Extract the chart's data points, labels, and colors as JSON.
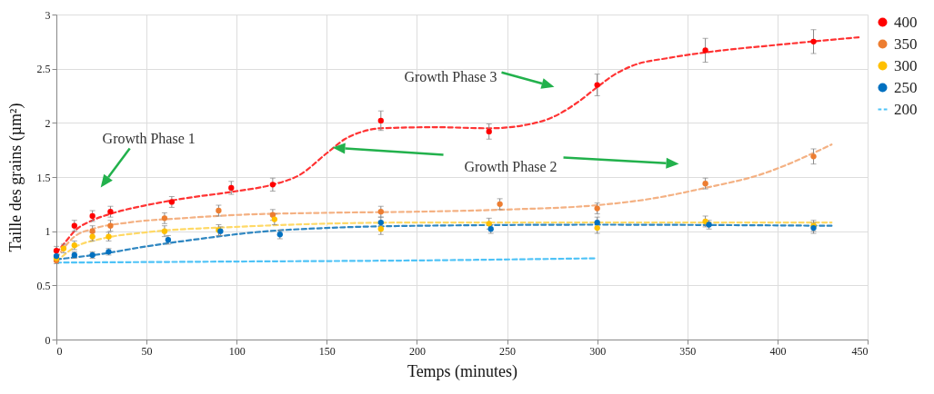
{
  "chart_data": {
    "type": "scatter",
    "xlabel": "Temps (minutes)",
    "ylabel": "Taille des grains (µm²)",
    "xlim": [
      0,
      450
    ],
    "xticks": [
      0,
      50,
      100,
      150,
      200,
      250,
      300,
      350,
      400,
      450
    ],
    "ylim": [
      0,
      3
    ],
    "yticks": [
      0,
      0.5,
      1,
      1.5,
      2,
      2.5,
      3
    ],
    "grid": true,
    "legend": "right",
    "annotations": [
      "Growth Phase 1",
      "Growth Phase 2",
      "Growth Phase 3"
    ],
    "series": [
      {
        "type": "line",
        "color": "#ff3333",
        "line_style": "dashed",
        "x": [
          0,
          5,
          10,
          20,
          30,
          50,
          70,
          100,
          120,
          135,
          150,
          160,
          170,
          180,
          210,
          240,
          260,
          275,
          290,
          300,
          310,
          320,
          340,
          360,
          400,
          445
        ],
        "values": [
          0.8,
          0.9,
          1.0,
          1.1,
          1.16,
          1.24,
          1.3,
          1.37,
          1.43,
          1.52,
          1.72,
          1.85,
          1.92,
          1.95,
          1.96,
          1.95,
          1.98,
          2.05,
          2.2,
          2.33,
          2.45,
          2.53,
          2.6,
          2.65,
          2.72,
          2.79
        ]
      },
      {
        "type": "line",
        "color": "#f4b183",
        "line_style": "dashed",
        "x": [
          0,
          10,
          20,
          40,
          70,
          100,
          150,
          200,
          250,
          300,
          330,
          360,
          390,
          430
        ],
        "values": [
          0.75,
          0.95,
          1.02,
          1.08,
          1.12,
          1.15,
          1.17,
          1.18,
          1.2,
          1.24,
          1.3,
          1.4,
          1.52,
          1.8
        ]
      },
      {
        "type": "line",
        "color": "#ffd966",
        "line_style": "dashed",
        "x": [
          0,
          10,
          25,
          50,
          100,
          150,
          200,
          300,
          430
        ],
        "values": [
          0.72,
          0.85,
          0.93,
          0.99,
          1.04,
          1.07,
          1.08,
          1.08,
          1.08
        ]
      },
      {
        "type": "line",
        "color": "#2e86c1",
        "line_style": "dashed",
        "x": [
          0,
          25,
          50,
          80,
          110,
          150,
          200,
          300,
          430
        ],
        "values": [
          0.74,
          0.79,
          0.86,
          0.93,
          0.99,
          1.03,
          1.05,
          1.06,
          1.05
        ]
      },
      {
        "name": "400",
        "marker": "circle",
        "color": "#ff0000",
        "x": [
          0,
          10,
          20,
          30,
          64,
          97,
          120,
          180,
          240,
          300,
          360,
          420
        ],
        "values": [
          0.82,
          1.05,
          1.14,
          1.18,
          1.27,
          1.4,
          1.43,
          2.02,
          1.92,
          2.35,
          2.67,
          2.75
        ],
        "errors": [
          0.04,
          0.05,
          0.05,
          0.05,
          0.05,
          0.06,
          0.06,
          0.09,
          0.07,
          0.1,
          0.11,
          0.11
        ]
      },
      {
        "name": "350",
        "marker": "circle",
        "color": "#ed7d31",
        "x": [
          0,
          20,
          30,
          60,
          90,
          120,
          180,
          246,
          300,
          360,
          420
        ],
        "values": [
          0.73,
          1.0,
          1.05,
          1.12,
          1.19,
          1.15,
          1.18,
          1.25,
          1.21,
          1.44,
          1.69
        ],
        "errors": [
          0.03,
          0.05,
          0.05,
          0.05,
          0.05,
          0.05,
          0.05,
          0.05,
          0.05,
          0.05,
          0.07
        ]
      },
      {
        "name": "300",
        "marker": "circle",
        "color": "#ffc000",
        "x": [
          0,
          4,
          10,
          20,
          29,
          60,
          90,
          121,
          180,
          240,
          300,
          360,
          420
        ],
        "values": [
          0.75,
          0.84,
          0.87,
          0.95,
          0.95,
          1.0,
          1.01,
          1.11,
          1.02,
          1.07,
          1.03,
          1.09,
          1.05
        ],
        "errors": [
          0.03,
          0.04,
          0.04,
          0.04,
          0.04,
          0.05,
          0.05,
          0.05,
          0.05,
          0.05,
          0.05,
          0.05,
          0.05
        ]
      },
      {
        "name": "250",
        "marker": "circle",
        "color": "#0070c0",
        "x": [
          0,
          10,
          20,
          29,
          62,
          91,
          124,
          180,
          241,
          300,
          362,
          420
        ],
        "values": [
          0.77,
          0.78,
          0.78,
          0.81,
          0.92,
          1.0,
          0.97,
          1.08,
          1.02,
          1.08,
          1.06,
          1.03
        ],
        "errors": [
          null,
          0.03,
          0.03,
          0.03,
          0.04,
          0.04,
          0.04,
          0.05,
          0.04,
          0.05,
          0.04,
          0.05
        ]
      },
      {
        "type": "line",
        "name": "200",
        "color": "#4fc3f7",
        "line_style": "dashed",
        "x": [
          0,
          100,
          200,
          300
        ],
        "values": [
          0.71,
          0.72,
          0.73,
          0.75
        ]
      }
    ]
  }
}
